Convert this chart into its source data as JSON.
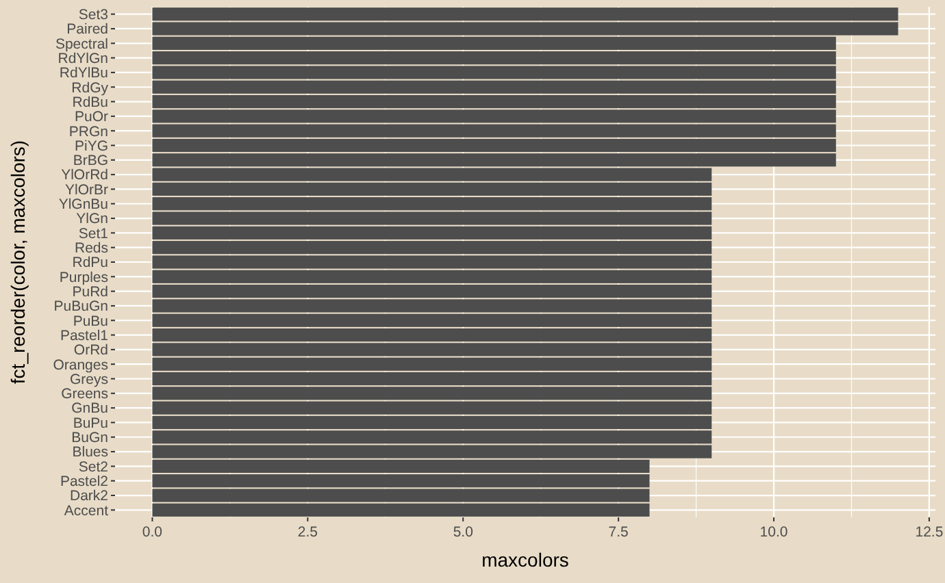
{
  "chart_data": {
    "type": "bar",
    "orientation": "horizontal",
    "xlabel": "maxcolors",
    "ylabel": "fct_reorder(color, maxcolors)",
    "categories": [
      "Set3",
      "Paired",
      "Spectral",
      "RdYlGn",
      "RdYlBu",
      "RdGy",
      "RdBu",
      "PuOr",
      "PRGn",
      "PiYG",
      "BrBG",
      "YlOrRd",
      "YlOrBr",
      "YlGnBu",
      "YlGn",
      "Set1",
      "Reds",
      "RdPu",
      "Purples",
      "PuRd",
      "PuBuGn",
      "PuBu",
      "Pastel1",
      "OrRd",
      "Oranges",
      "Greys",
      "Greens",
      "GnBu",
      "BuPu",
      "BuGn",
      "Blues",
      "Set2",
      "Pastel2",
      "Dark2",
      "Accent"
    ],
    "values": [
      12,
      12,
      11,
      11,
      11,
      11,
      11,
      11,
      11,
      11,
      11,
      9,
      9,
      9,
      9,
      9,
      9,
      9,
      9,
      9,
      9,
      9,
      9,
      9,
      9,
      9,
      9,
      9,
      9,
      9,
      9,
      8,
      8,
      8,
      8
    ],
    "color": "#4d4d4d",
    "xlim": [
      -0.6,
      12.6
    ],
    "xticks": [
      {
        "value": 0,
        "label": "0.0"
      },
      {
        "value": 2.5,
        "label": "2.5"
      },
      {
        "value": 5,
        "label": "5.0"
      },
      {
        "value": 7.5,
        "label": "7.5"
      },
      {
        "value": 10,
        "label": "10.0"
      },
      {
        "value": 12.5,
        "label": "12.5"
      }
    ],
    "grid": true
  }
}
